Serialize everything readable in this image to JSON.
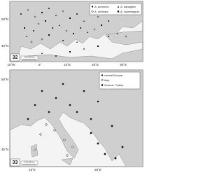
{
  "panels": [
    {
      "label": "32",
      "legend": [
        "A. armorica",
        "A. banogeta",
        "A. umbrata",
        "A. subtriangula"
      ],
      "scale": "0 250 500 km",
      "lon_labels": [
        "10°W",
        "0°",
        "10°E",
        "20°E",
        "30°E"
      ],
      "lat_labels": [
        "50°N",
        "40°N"
      ]
    },
    {
      "label": "33",
      "legend": [
        "central Europe",
        "Italy",
        "Greece, Turkey"
      ],
      "scale": "0 100 200 km",
      "lon_labels": [
        "10°E",
        "20°E"
      ],
      "lat_labels": [
        "50°N",
        "45°N"
      ]
    }
  ]
}
